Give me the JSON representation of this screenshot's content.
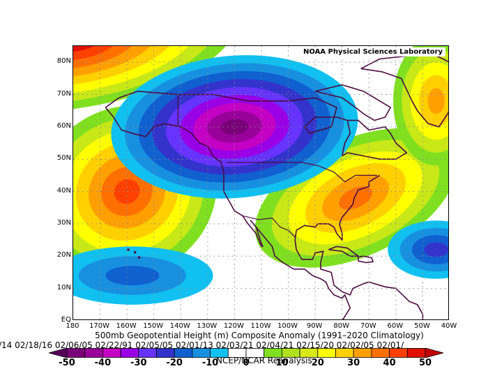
{
  "map": {
    "credit": "NOAA Physical Sciences Laboratory",
    "lat_labels": [
      "80N",
      "70N",
      "60N",
      "50N",
      "40N",
      "30N",
      "20N",
      "10N",
      "EQ"
    ],
    "lon_labels": [
      "180",
      "170W",
      "160W",
      "150W",
      "140W",
      "130W",
      "120W",
      "110W",
      "100W",
      "90W",
      "80W",
      "70W",
      "60W",
      "50W",
      "40W"
    ],
    "extent": {
      "lon_min": -180,
      "lon_max": -40,
      "lat_min": 0,
      "lat_max": 85
    },
    "anomaly_features": [
      {
        "kind": "negative",
        "center_lon": -120,
        "center_lat": 60,
        "peak_m": -50
      },
      {
        "kind": "positive",
        "center_lon": -160,
        "center_lat": 40,
        "peak_m": 40
      },
      {
        "kind": "positive",
        "center_lon": -70,
        "center_lat": 40,
        "peak_m": 35
      },
      {
        "kind": "positive",
        "center_lon": -177,
        "center_lat": 84,
        "peak_m": 50
      },
      {
        "kind": "positive",
        "center_lon": -45,
        "center_lat": 70,
        "peak_m": 30
      },
      {
        "kind": "negative",
        "center_lon": -45,
        "center_lat": 22,
        "peak_m": -25
      },
      {
        "kind": "negative",
        "center_lon": -155,
        "center_lat": 16,
        "peak_m": -15
      }
    ]
  },
  "title": "500mb Geopotential Height (m) Composite Anomaly (1991–2020 Climatology)",
  "dates": "/14 02/18/16 02/06/05 02/22/91 02/05/05 02/01/13 02/03/21 02/04/21 02/15/20 02/02/05 02/01/",
  "dataset": "NCEP/NCAR Reanalysis",
  "colorbar": {
    "labels": [
      "-50",
      "-40",
      "-30",
      "-20",
      "-10",
      "0",
      "10",
      "20",
      "30",
      "40",
      "50"
    ],
    "colors": [
      "#7a007a",
      "#990099",
      "#c300c3",
      "#9a00e6",
      "#6633ff",
      "#3333cc",
      "#1060d0",
      "#1890e0",
      "#10c0f0",
      "#ffffff",
      "#ffffff",
      "#80e020",
      "#b0e020",
      "#d8e818",
      "#ffff00",
      "#ffd000",
      "#ffa000",
      "#ff7000",
      "#ff4000",
      "#e01000"
    ]
  }
}
